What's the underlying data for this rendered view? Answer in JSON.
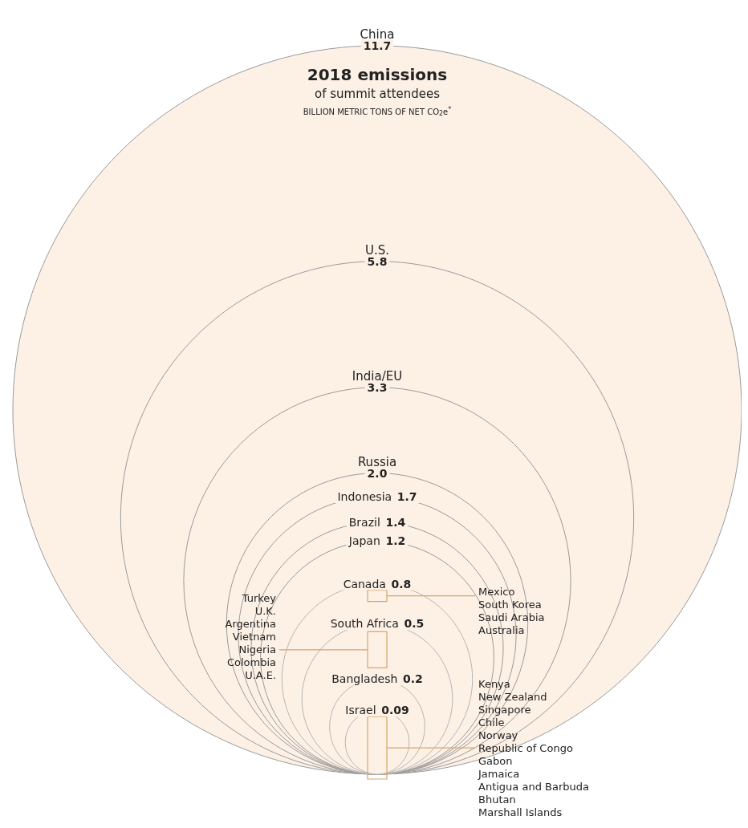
{
  "chart_data": {
    "type": "other",
    "title": "2018 emissions",
    "subtitle": "of summit attendees",
    "categories": [
      "China",
      "U.S.",
      "India/EU",
      "Russia",
      "Indonesia",
      "Brazil",
      "Japan",
      "Canada",
      "South Africa",
      "Bangladesh",
      "Israel"
    ],
    "values": [
      11.7,
      5.8,
      3.3,
      2.0,
      1.7,
      1.4,
      1.2,
      0.8,
      0.5,
      0.2,
      0.09
    ],
    "value_labels": [
      "11.7",
      "5.8",
      "3.3",
      "2.0",
      "1.7",
      "1.4",
      "1.2",
      "0.8",
      "0.5",
      "0.2",
      "0.09"
    ],
    "color": "#fdf1e6",
    "annotations": [
      "BILLION METRIC TONS OF NET CO$_{2}$e$^{*}$",
      "Mexico\nSouth Korea\nSaudi Arabia\nAustralia",
      "Turkey\nU.K.\nArgentina\nVietnam\nNigeria\nColombia\nU.A.E.",
      "Kenya\nNew Zealand\nSingapore\nChile\nNorway\nRepublic of Congo\nGabon\nJamaica\nAntigua and Barbuda\nBhutan\nMarshall Islands"
    ]
  }
}
